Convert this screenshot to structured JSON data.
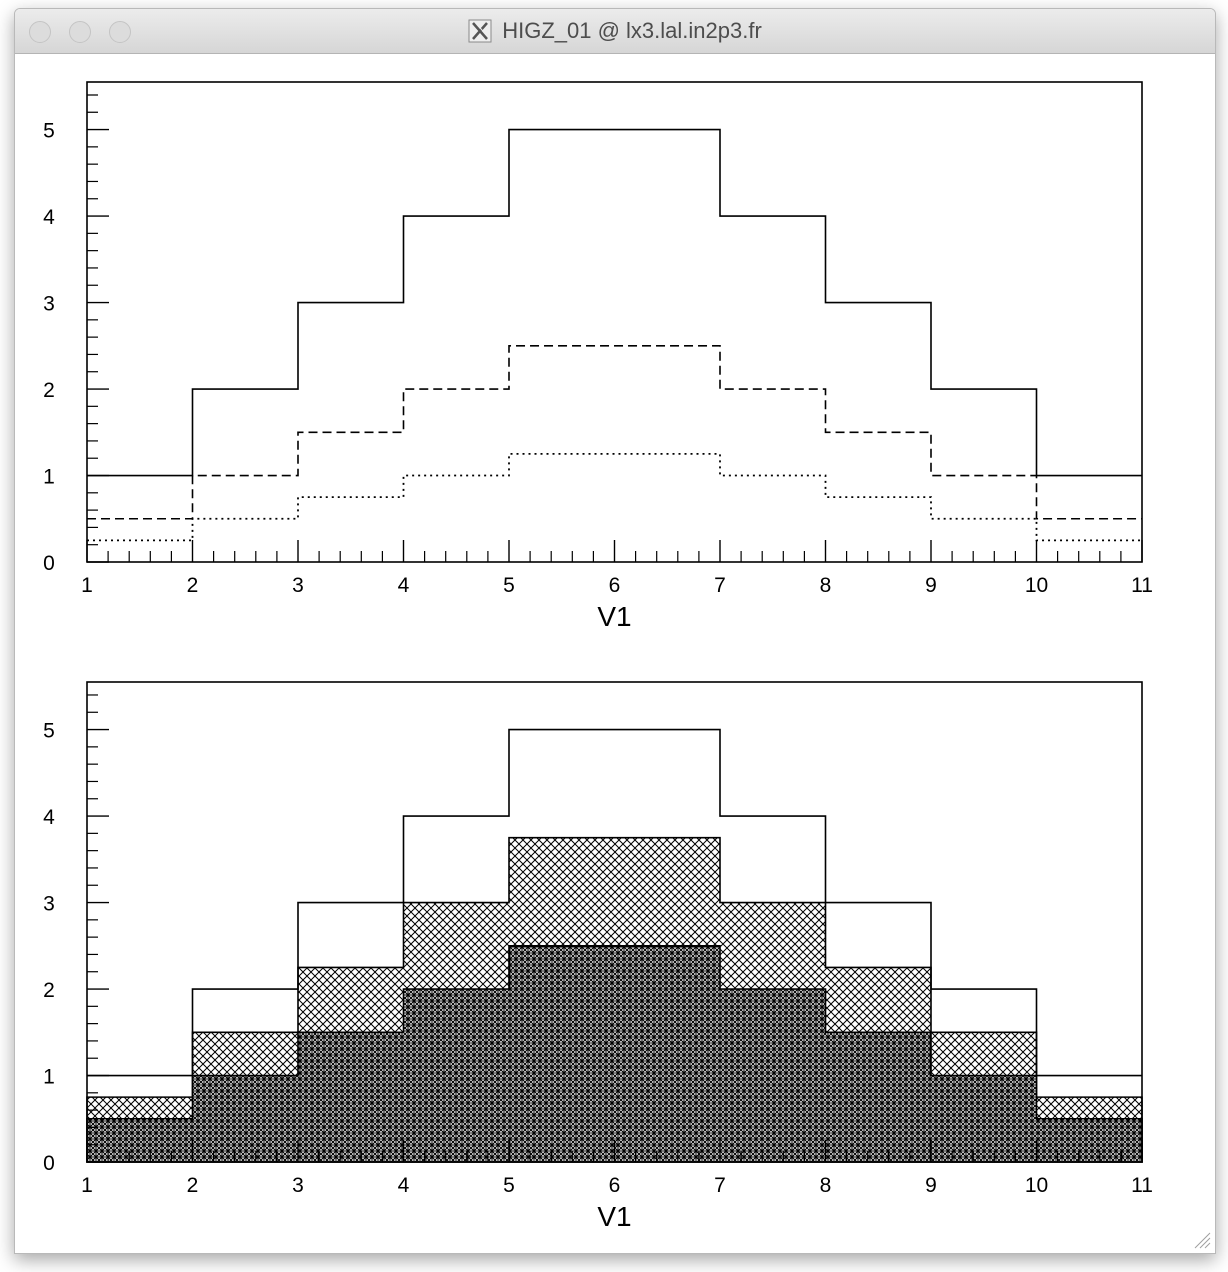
{
  "window": {
    "title": "HIGZ_01 @ lx3.lal.in2p3.fr",
    "icon": "x11-icon",
    "buttons": [
      "close",
      "minimize",
      "zoom"
    ]
  },
  "chart_data": [
    {
      "type": "line",
      "style": "step-histogram",
      "xlabel": "V1",
      "xlim": [
        1,
        11
      ],
      "ylim": [
        0,
        5.55
      ],
      "x_ticks": [
        "1",
        "2",
        "3",
        "4",
        "5",
        "6",
        "7",
        "8",
        "9",
        "10",
        "11"
      ],
      "y_ticks": [
        "0",
        "1",
        "2",
        "3",
        "4",
        "5"
      ],
      "bin_edges": [
        1,
        2,
        3,
        4,
        5,
        7,
        8,
        9,
        10,
        11
      ],
      "series": [
        {
          "values": [
            1,
            2,
            3,
            4,
            5,
            4,
            3,
            2,
            1
          ],
          "line": "solid"
        },
        {
          "values": [
            0.5,
            1,
            1.5,
            2,
            2.5,
            2,
            1.5,
            1,
            0.5
          ],
          "line": "dashed"
        },
        {
          "values": [
            0.25,
            0.5,
            0.75,
            1,
            1.25,
            1,
            0.75,
            0.5,
            0.25
          ],
          "line": "dotted"
        }
      ]
    },
    {
      "type": "area",
      "style": "filled-step-histogram",
      "xlabel": "V1",
      "xlim": [
        1,
        11
      ],
      "ylim": [
        0,
        5.55
      ],
      "x_ticks": [
        "1",
        "2",
        "3",
        "4",
        "5",
        "6",
        "7",
        "8",
        "9",
        "10",
        "11"
      ],
      "y_ticks": [
        "0",
        "1",
        "2",
        "3",
        "4",
        "5"
      ],
      "bin_edges": [
        1,
        2,
        3,
        4,
        5,
        7,
        8,
        9,
        10,
        11
      ],
      "series": [
        {
          "values": [
            1,
            2,
            3,
            4,
            5,
            4,
            3,
            2,
            1
          ],
          "fill": "none"
        },
        {
          "values": [
            0.75,
            1.5,
            2.25,
            3,
            3.75,
            3,
            2.25,
            1.5,
            0.75
          ],
          "fill": "cross-hatch"
        },
        {
          "values": [
            0.5,
            1,
            1.5,
            2,
            2.5,
            2,
            1.5,
            1,
            0.5
          ],
          "fill": "dense-cross-hatch"
        }
      ]
    }
  ]
}
